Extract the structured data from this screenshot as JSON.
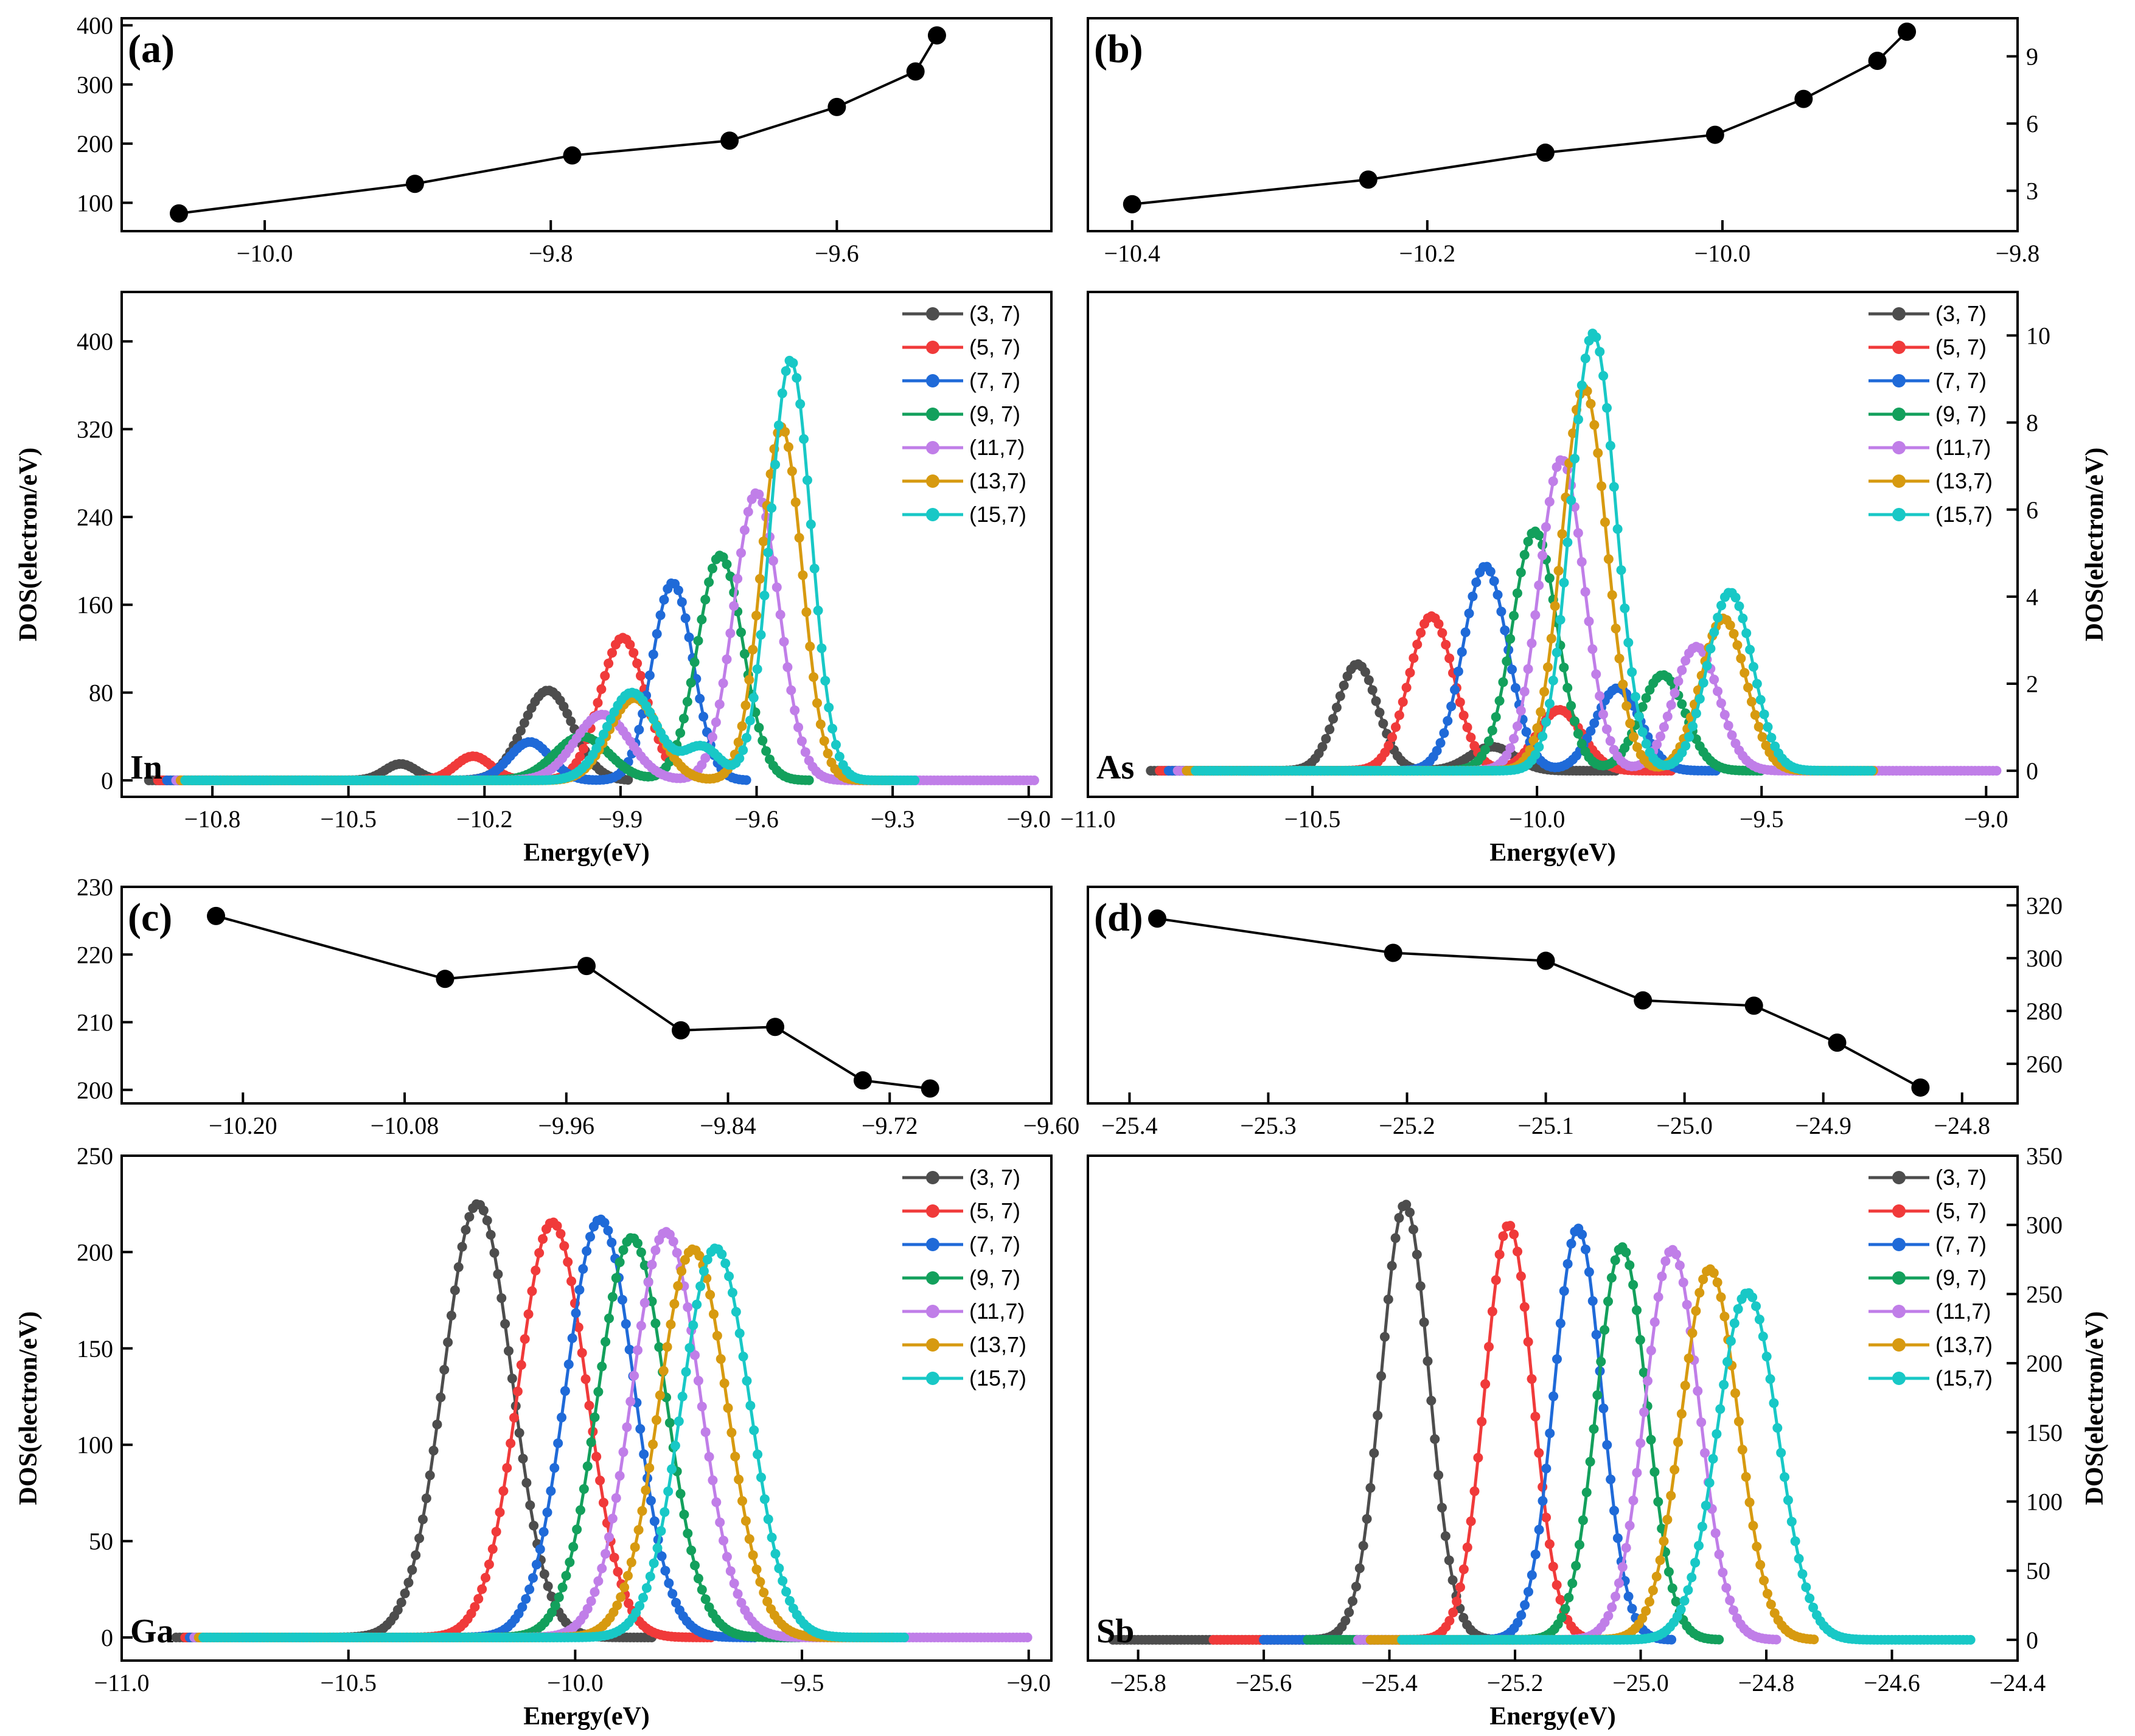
{
  "colors": [
    "#4d4d4d",
    "#f03a3a",
    "#1f6ad8",
    "#13a05c",
    "#c07ee8",
    "#d79a10",
    "#18c8c6"
  ],
  "legend": [
    "(3, 7)",
    "(5, 7)",
    "(7, 7)",
    "(9, 7)",
    "(11,7)",
    "(13,7)",
    "(15,7)"
  ],
  "chart_data": [
    {
      "id": "a",
      "type": "line",
      "panel_label": "(a)",
      "x": [
        -10.06,
        -9.895,
        -9.785,
        -9.675,
        -9.6,
        -9.545,
        -9.53
      ],
      "y": [
        82,
        132,
        180,
        205,
        262,
        322,
        383
      ],
      "xlim": [
        -10.1,
        -9.45
      ],
      "ylim": [
        52,
        412
      ],
      "xticks": [
        -10.0,
        -9.8,
        -9.6
      ],
      "xtick_labels": [
        "−10.0",
        "−9.8",
        "−9.6"
      ],
      "yticks": [
        100,
        200,
        300,
        400
      ],
      "ytick_labels": [
        "100",
        "200",
        "300",
        "400"
      ],
      "y_side": "left",
      "xlabel": "",
      "ylabel": ""
    },
    {
      "id": "b",
      "type": "line",
      "panel_label": "(b)",
      "x": [
        -10.4,
        -10.24,
        -10.12,
        -10.005,
        -9.945,
        -9.895,
        -9.875
      ],
      "y": [
        2.4,
        3.5,
        4.7,
        5.5,
        7.1,
        8.8,
        10.1
      ],
      "xlim": [
        -10.43,
        -9.8
      ],
      "ylim": [
        1.2,
        10.7
      ],
      "xticks": [
        -10.4,
        -10.2,
        -10.0,
        -9.8
      ],
      "xtick_labels": [
        "−10.4",
        "−10.2",
        "−10.0",
        "−9.8"
      ],
      "yticks": [
        3,
        6,
        9
      ],
      "ytick_labels": [
        "3",
        "6",
        "9"
      ],
      "y_side": "right",
      "xlabel": "",
      "ylabel": ""
    },
    {
      "id": "c",
      "type": "line",
      "panel_label": "(c)",
      "x": [
        -10.22,
        -10.05,
        -9.945,
        -9.875,
        -9.805,
        -9.74,
        -9.69
      ],
      "y": [
        225.7,
        216.4,
        218.3,
        208.8,
        209.3,
        201.4,
        200.2
      ],
      "xlim": [
        -10.29,
        -9.6
      ],
      "ylim": [
        198,
        230
      ],
      "xticks": [
        -10.2,
        -10.08,
        -9.96,
        -9.84,
        -9.72,
        -9.6
      ],
      "xtick_labels": [
        "−10.20",
        "−10.08",
        "−9.96",
        "−9.84",
        "−9.72",
        "−9.60"
      ],
      "yticks": [
        200,
        210,
        220,
        230
      ],
      "ytick_labels": [
        "200",
        "210",
        "220",
        "230"
      ],
      "y_side": "left",
      "xlabel": "",
      "ylabel": ""
    },
    {
      "id": "d",
      "type": "line",
      "panel_label": "(d)",
      "x": [
        -25.38,
        -25.21,
        -25.1,
        -25.03,
        -24.95,
        -24.89,
        -24.83
      ],
      "y": [
        315,
        302,
        299,
        284,
        282,
        268,
        251
      ],
      "xlim": [
        -25.43,
        -24.76
      ],
      "ylim": [
        245,
        327
      ],
      "xticks": [
        -25.4,
        -25.3,
        -25.2,
        -25.1,
        -25.0,
        -24.9,
        -24.8
      ],
      "xtick_labels": [
        "−25.4",
        "−25.3",
        "−25.2",
        "−25.1",
        "−25.0",
        "−24.9",
        "−24.8"
      ],
      "yticks": [
        260,
        280,
        300,
        320
      ],
      "ytick_labels": [
        "260",
        "280",
        "300",
        "320"
      ],
      "y_side": "right",
      "xlabel": "",
      "ylabel": ""
    },
    {
      "id": "In",
      "type": "line",
      "element_label": "In",
      "xlabel": "Energy(eV)",
      "ylabel": "DOS(electron/eV)",
      "y_side": "left",
      "xlim": [
        -11.0,
        -8.95
      ],
      "ylim": [
        -15,
        445
      ],
      "xticks": [
        -10.8,
        -10.5,
        -10.2,
        -9.9,
        -9.6,
        -9.3,
        -9.0
      ],
      "xtick_labels": [
        "−10.8",
        "−10.5",
        "−10.2",
        "−9.9",
        "−9.6",
        "−9.3",
        "−9.0"
      ],
      "yticks": [
        0,
        80,
        160,
        240,
        320,
        400
      ],
      "ytick_labels": [
        "0",
        "80",
        "160",
        "240",
        "320",
        "400"
      ],
      "series": [
        {
          "name": "(3, 7)",
          "x_range": [
            -10.94,
            -9.88
          ],
          "peaks": [
            [
              -10.385,
              15,
              0.035
            ],
            [
              -10.06,
              82,
              0.055
            ]
          ]
        },
        {
          "name": "(5, 7)",
          "x_range": [
            -10.92,
            -9.8
          ],
          "peaks": [
            [
              -10.225,
              22,
              0.04
            ],
            [
              -9.895,
              130,
              0.05
            ]
          ]
        },
        {
          "name": "(7, 7)",
          "x_range": [
            -10.9,
            -9.62
          ],
          "peaks": [
            [
              -10.1,
              35,
              0.045
            ],
            [
              -9.785,
              180,
              0.045
            ]
          ]
        },
        {
          "name": "(9, 7)",
          "x_range": [
            -10.88,
            -9.48
          ],
          "peaks": [
            [
              -9.985,
              40,
              0.06
            ],
            [
              -9.68,
              205,
              0.05
            ]
          ]
        },
        {
          "name": "(11,7)",
          "x_range": [
            -10.88,
            -8.98
          ],
          "peaks": [
            [
              -9.94,
              60,
              0.06
            ],
            [
              -9.6,
              262,
              0.05
            ]
          ]
        },
        {
          "name": "(13,7)",
          "x_range": [
            -10.87,
            -9.3
          ],
          "peaks": [
            [
              -9.87,
              75,
              0.055
            ],
            [
              -9.545,
              322,
              0.045
            ]
          ]
        },
        {
          "name": "(15,7)",
          "x_range": [
            -10.86,
            -9.25
          ],
          "peaks": [
            [
              -9.875,
              80,
              0.055
            ],
            [
              -9.72,
              30,
              0.04
            ],
            [
              -9.525,
              383,
              0.045
            ]
          ]
        }
      ]
    },
    {
      "id": "As",
      "type": "line",
      "element_label": "As",
      "xlabel": "Energy(eV)",
      "ylabel": "DOS(electron/eV)",
      "y_side": "right",
      "xlim": [
        -11.0,
        -8.93
      ],
      "ylim": [
        -0.6,
        11.0
      ],
      "xticks": [
        -11.0,
        -10.5,
        -10.0,
        -9.5,
        -9.0
      ],
      "xtick_labels": [
        "−11.0",
        "−10.5",
        "−10.0",
        "−9.5",
        "−9.0"
      ],
      "yticks": [
        0,
        2,
        4,
        6,
        8,
        10
      ],
      "ytick_labels": [
        "0",
        "2",
        "4",
        "6",
        "8",
        "10"
      ],
      "series": [
        {
          "name": "(3, 7)",
          "x_range": [
            -10.86,
            -9.82
          ],
          "peaks": [
            [
              -10.4,
              2.45,
              0.045
            ],
            [
              -10.1,
              0.55,
              0.05
            ]
          ]
        },
        {
          "name": "(5, 7)",
          "x_range": [
            -10.84,
            -9.7
          ],
          "peaks": [
            [
              -10.235,
              3.55,
              0.05
            ],
            [
              -9.95,
              1.4,
              0.05
            ]
          ]
        },
        {
          "name": "(7, 7)",
          "x_range": [
            -10.82,
            -9.6
          ],
          "peaks": [
            [
              -10.115,
              4.7,
              0.05
            ],
            [
              -9.82,
              1.9,
              0.05
            ]
          ]
        },
        {
          "name": "(9, 7)",
          "x_range": [
            -10.8,
            -9.5
          ],
          "peaks": [
            [
              -10.005,
              5.5,
              0.05
            ],
            [
              -9.72,
              2.2,
              0.05
            ]
          ]
        },
        {
          "name": "(11,7)",
          "x_range": [
            -10.8,
            -8.97
          ],
          "peaks": [
            [
              -9.945,
              7.15,
              0.05
            ],
            [
              -9.645,
              2.85,
              0.05
            ]
          ]
        },
        {
          "name": "(13,7)",
          "x_range": [
            -10.78,
            -9.25
          ],
          "peaks": [
            [
              -9.895,
              8.8,
              0.05
            ],
            [
              -9.585,
              3.5,
              0.05
            ]
          ]
        },
        {
          "name": "(15,7)",
          "x_range": [
            -10.76,
            -9.25
          ],
          "peaks": [
            [
              -9.875,
              10.05,
              0.05
            ],
            [
              -9.57,
              4.1,
              0.05
            ]
          ]
        }
      ]
    },
    {
      "id": "Ga",
      "type": "line",
      "element_label": "Ga",
      "xlabel": "Energy(eV)",
      "ylabel": "DOS(electron/eV)",
      "y_side": "left",
      "xlim": [
        -11.0,
        -8.95
      ],
      "ylim": [
        -12,
        250
      ],
      "xticks": [
        -11.0,
        -10.5,
        -10.0,
        -9.5,
        -9.0
      ],
      "xtick_labels": [
        "−11.0",
        "−10.5",
        "−10.0",
        "−9.5",
        "−9.0"
      ],
      "yticks": [
        0,
        50,
        100,
        150,
        200,
        250
      ],
      "ytick_labels": [
        "0",
        "50",
        "100",
        "150",
        "200",
        "250"
      ],
      "series": [
        {
          "name": "(3, 7)",
          "x_range": [
            -10.88,
            -9.83
          ],
          "peaks": [
            [
              -10.215,
              225,
              0.075
            ]
          ]
        },
        {
          "name": "(5, 7)",
          "x_range": [
            -10.86,
            -9.7
          ],
          "peaks": [
            [
              -10.05,
              215.5,
              0.075
            ]
          ]
        },
        {
          "name": "(7, 7)",
          "x_range": [
            -10.85,
            -9.6
          ],
          "peaks": [
            [
              -9.945,
              217,
              0.075
            ]
          ]
        },
        {
          "name": "(9, 7)",
          "x_range": [
            -10.84,
            -9.5
          ],
          "peaks": [
            [
              -9.875,
              207.5,
              0.075
            ]
          ]
        },
        {
          "name": "(11,7)",
          "x_range": [
            -10.84,
            -9.0
          ],
          "peaks": [
            [
              -9.8,
              210.5,
              0.075
            ]
          ]
        },
        {
          "name": "(13,7)",
          "x_range": [
            -10.83,
            -9.3
          ],
          "peaks": [
            [
              -9.74,
              201.5,
              0.075
            ]
          ]
        },
        {
          "name": "(15,7)",
          "x_range": [
            -10.82,
            -9.27
          ],
          "peaks": [
            [
              -9.69,
              202,
              0.075
            ]
          ]
        }
      ]
    },
    {
      "id": "Sb",
      "type": "line",
      "element_label": "Sb",
      "xlabel": "Energy(eV)",
      "ylabel": "DOS(electron/eV)",
      "y_side": "right",
      "xlim": [
        -25.88,
        -24.4
      ],
      "ylim": [
        -15,
        350
      ],
      "xticks": [
        -25.8,
        -25.6,
        -25.4,
        -25.2,
        -25.0,
        -24.8,
        -24.6,
        -24.4
      ],
      "xtick_labels": [
        "−25.8",
        "−25.6",
        "−25.4",
        "−25.2",
        "−25.0",
        "−24.8",
        "−24.6",
        "−24.4"
      ],
      "yticks": [
        0,
        50,
        100,
        150,
        200,
        250,
        300,
        350
      ],
      "ytick_labels": [
        "0",
        "50",
        "100",
        "150",
        "200",
        "250",
        "300",
        "350"
      ],
      "series": [
        {
          "name": "(3, 7)",
          "x_range": [
            -25.84,
            -25.2
          ],
          "peaks": [
            [
              -25.375,
              315,
              0.038
            ]
          ]
        },
        {
          "name": "(5, 7)",
          "x_range": [
            -25.68,
            -25.05
          ],
          "peaks": [
            [
              -25.21,
              300,
              0.038
            ]
          ]
        },
        {
          "name": "(7, 7)",
          "x_range": [
            -25.6,
            -24.95
          ],
          "peaks": [
            [
              -25.1,
              297.5,
              0.038
            ]
          ]
        },
        {
          "name": "(9, 7)",
          "x_range": [
            -25.53,
            -24.87
          ],
          "peaks": [
            [
              -25.03,
              284,
              0.04
            ]
          ]
        },
        {
          "name": "(11,7)",
          "x_range": [
            -25.45,
            -24.78
          ],
          "peaks": [
            [
              -24.95,
              282,
              0.043
            ]
          ]
        },
        {
          "name": "(13,7)",
          "x_range": [
            -25.43,
            -24.72
          ],
          "peaks": [
            [
              -24.89,
              268,
              0.045
            ]
          ]
        },
        {
          "name": "(15,7)",
          "x_range": [
            -25.38,
            -24.47
          ],
          "peaks": [
            [
              -24.83,
              251,
              0.048
            ]
          ]
        }
      ]
    }
  ]
}
